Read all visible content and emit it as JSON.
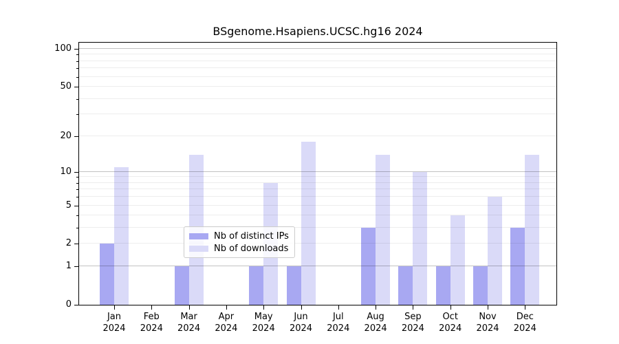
{
  "chart_data": {
    "type": "bar",
    "title": "BSgenome.Hsapiens.UCSC.hg16 2024",
    "categories": [
      "Jan",
      "Feb",
      "Mar",
      "Apr",
      "May",
      "Jun",
      "Jul",
      "Aug",
      "Sep",
      "Oct",
      "Nov",
      "Dec"
    ],
    "x_year_label": "2024",
    "series": [
      {
        "name": "Nb of distinct IPs",
        "slug": "distinct-ips",
        "color": "#a8a8f2",
        "values": [
          2,
          0,
          1,
          0,
          1,
          1,
          0,
          3,
          1,
          1,
          1,
          3
        ]
      },
      {
        "name": "Nb of downloads",
        "slug": "downloads",
        "color": "#dadaf8",
        "values": [
          11,
          0,
          14,
          0,
          8,
          18,
          0,
          14,
          10,
          4,
          6,
          14
        ]
      }
    ],
    "yscale": "log1p",
    "ylim": [
      0,
      100
    ],
    "y_tick_values": [
      100,
      50,
      20,
      10,
      5,
      2,
      1,
      0
    ],
    "y_major_gridlines": [
      1,
      10,
      100
    ],
    "y_minor_gridlines": [
      2,
      3,
      4,
      5,
      6,
      7,
      8,
      9,
      20,
      30,
      40,
      50,
      60,
      70,
      80,
      90
    ],
    "y_minor_ticks": [
      3,
      4,
      6,
      7,
      8,
      9,
      30,
      40,
      60,
      70,
      80,
      90
    ],
    "grid": true,
    "legend_position": "lower center"
  },
  "colors": {
    "background": "#ffffff",
    "spine": "#000000",
    "major_grid": "rgba(0,0,0,0.24)",
    "minor_grid": "rgba(0,0,0,0.07)",
    "legend_border": "#cccccc",
    "legend_background": "rgba(255,255,255,0.8)",
    "text": "#000000"
  }
}
